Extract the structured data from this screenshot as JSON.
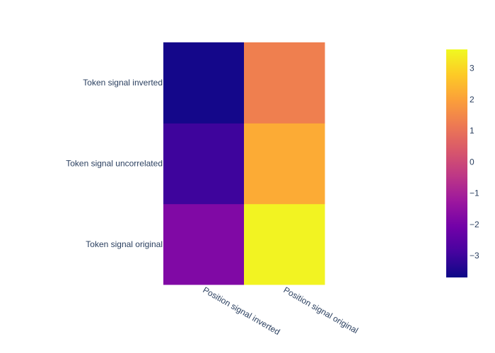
{
  "chart_data": {
    "type": "heatmap",
    "x_categories": [
      "Position signal inverted",
      "Position signal original"
    ],
    "y_categories": [
      "Token signal original",
      "Token signal uncorrelated",
      "Token signal inverted"
    ],
    "z": [
      [
        -1.8,
        3.5
      ],
      [
        -3.0,
        2.2
      ],
      [
        -3.6,
        1.3
      ]
    ],
    "colorscale": "plasma",
    "colorbar": {
      "range": [
        -3.7,
        3.6
      ],
      "ticks": [
        3,
        2,
        1,
        0,
        -1,
        -2,
        -3
      ],
      "tick_labels": [
        "3",
        "2",
        "1",
        "0",
        "−1",
        "−2",
        "−3"
      ]
    },
    "title": "",
    "xlabel": "",
    "ylabel": ""
  }
}
